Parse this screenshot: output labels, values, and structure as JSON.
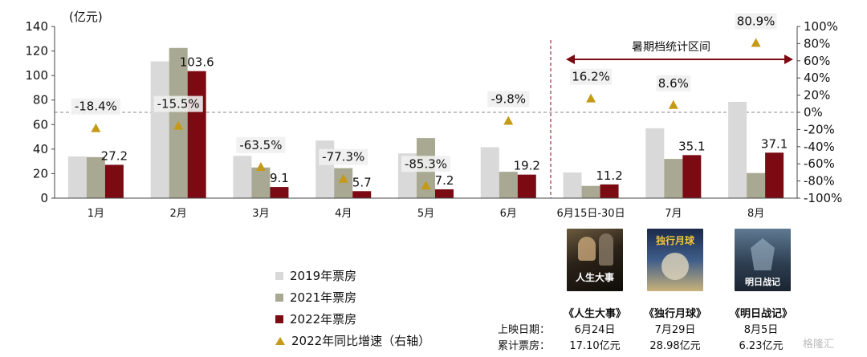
{
  "chart_data": {
    "type": "bar",
    "y_unit": "(亿元)",
    "categories": [
      "1月",
      "2月",
      "3月",
      "4月",
      "5月",
      "6月",
      "6月15日-30日",
      "7月",
      "8月"
    ],
    "series": [
      {
        "name": "2019年票房",
        "color": "#d9d9d9",
        "values": [
          34,
          111.5,
          34.5,
          47,
          36.5,
          41.5,
          21,
          57,
          78.5
        ]
      },
      {
        "name": "2021年票房",
        "color": "#a9a993",
        "values": [
          33.5,
          122.5,
          25,
          24.5,
          49,
          21.5,
          10,
          32,
          20.5
        ]
      },
      {
        "name": "2022年票房",
        "color": "#7b0a12",
        "values": [
          27.2,
          103.6,
          9.1,
          5.7,
          7.2,
          19.2,
          11.2,
          35.1,
          37.1
        ]
      }
    ],
    "growth_series": {
      "name": "2022年同比增速（右轴）",
      "color": "#c49a16",
      "values": [
        -18.4,
        -15.5,
        -63.5,
        -77.3,
        -85.3,
        -9.8,
        16.2,
        8.6,
        80.9
      ]
    },
    "bar_labels": [
      "27.2",
      "103.6",
      "9.1",
      "5.7",
      "7.2",
      "19.2",
      "11.2",
      "35.1",
      "37.1"
    ],
    "growth_labels": [
      "-18.4%",
      "-15.5%",
      "-63.5%",
      "-77.3%",
      "-85.3%",
      "-9.8%",
      "16.2%",
      "8.6%",
      "80.9%"
    ],
    "y_left": {
      "min": 0,
      "max": 140,
      "ticks": [
        "0",
        "20",
        "40",
        "60",
        "80",
        "100",
        "120",
        "140"
      ]
    },
    "y_right": {
      "min": -100,
      "max": 100,
      "ticks": [
        "-100%",
        "-80%",
        "-60%",
        "-40%",
        "-20%",
        "0%",
        "20%",
        "40%",
        "60%",
        "80%",
        "100%"
      ]
    },
    "summer_annotation": "暑期档统计区间"
  },
  "legend": [
    {
      "label": "2019年票房",
      "color": "#d9d9d9",
      "shape": "square"
    },
    {
      "label": "2021年票房",
      "color": "#a9a993",
      "shape": "square"
    },
    {
      "label": "2022年票房",
      "color": "#7b0a12",
      "shape": "square"
    },
    {
      "label": "2022年同比增速（右轴）",
      "color": "#c49a16",
      "shape": "triangle"
    }
  ],
  "movies": {
    "row_labels": {
      "release": "上映日期：",
      "cumulative": "累计票房："
    },
    "items": [
      {
        "title": "《人生大事》",
        "release": "6月24日",
        "box_office": "17.10亿元",
        "poster_text": "人生大事"
      },
      {
        "title": "《独行月球》",
        "release": "7月29日",
        "box_office": "28.98亿元",
        "poster_text": "独行月球"
      },
      {
        "title": "《明日战记》",
        "release": "8月5日",
        "box_office": "6.23亿元",
        "poster_text": "明日战记"
      }
    ]
  },
  "watermark": "格隆汇"
}
